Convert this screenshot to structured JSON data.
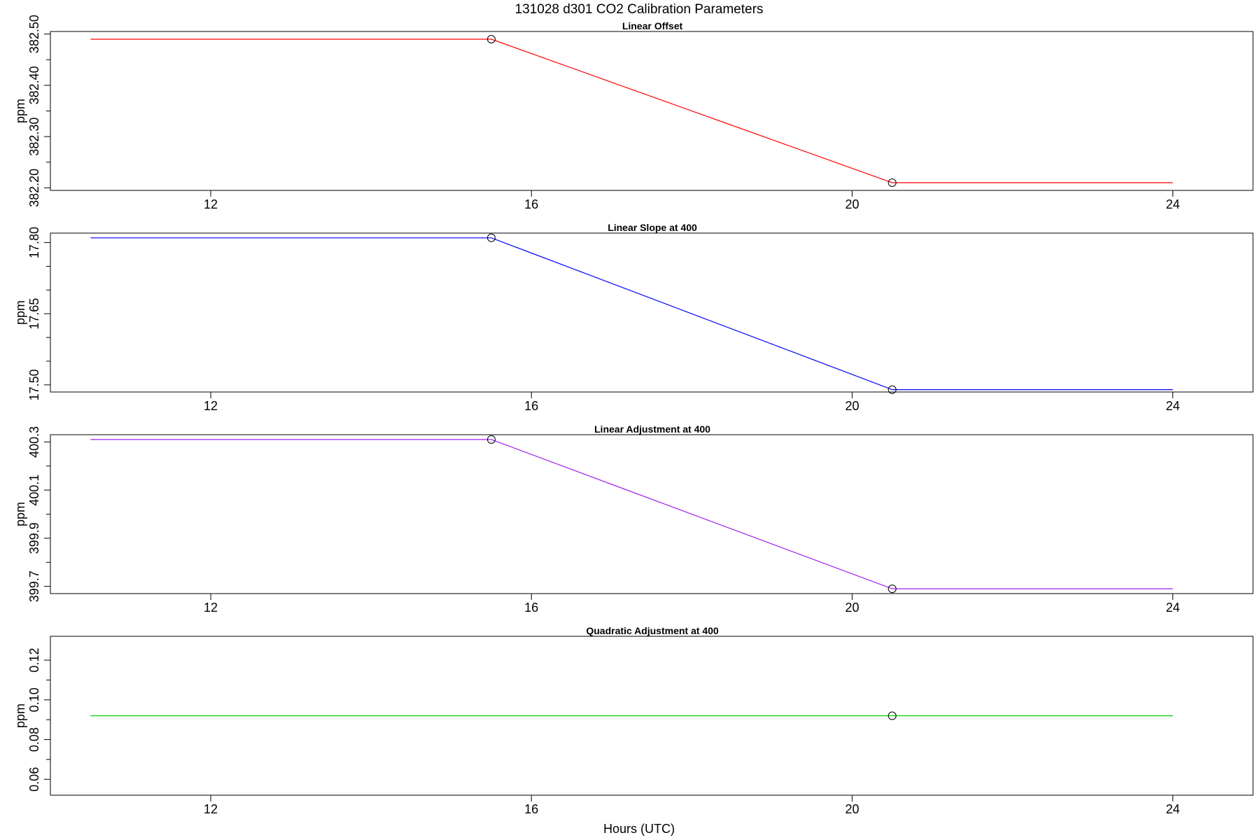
{
  "figure": {
    "title": "131028   d301   CO2 Calibration Parameters",
    "xlabel": "Hours (UTC)"
  },
  "chart_data": [
    {
      "type": "line",
      "title": "Linear Offset",
      "xlabel": "",
      "ylabel": "ppm",
      "xlim": [
        10,
        25
      ],
      "ylim": [
        382.195,
        382.505
      ],
      "x_ticks": [
        12,
        16,
        20,
        24
      ],
      "x_tick_labels": [
        "12",
        "16",
        "20",
        "24"
      ],
      "y_ticks": [
        382.2,
        382.3,
        382.4,
        382.5
      ],
      "y_tick_labels": [
        "382.20",
        "382.30",
        "382.40",
        "382.50"
      ],
      "y_minor_ticks": [
        382.25,
        382.35,
        382.45
      ],
      "color": "#ff0000",
      "x": [
        10.5,
        15.5,
        20.5,
        24.0
      ],
      "values": [
        382.49,
        382.49,
        382.21,
        382.21
      ],
      "markers": [
        {
          "x": 15.5,
          "y": 382.49
        },
        {
          "x": 20.5,
          "y": 382.21
        }
      ]
    },
    {
      "type": "line",
      "title": "Linear Slope at 400",
      "xlabel": "",
      "ylabel": "ppm",
      "xlim": [
        10,
        25
      ],
      "ylim": [
        17.485,
        17.82
      ],
      "x_ticks": [
        12,
        16,
        20,
        24
      ],
      "x_tick_labels": [
        "12",
        "16",
        "20",
        "24"
      ],
      "y_ticks": [
        17.5,
        17.65,
        17.8
      ],
      "y_tick_labels": [
        "17.50",
        "17.65",
        "17.80"
      ],
      "y_minor_ticks": [
        17.55,
        17.6,
        17.7,
        17.75
      ],
      "color": "#0000ff",
      "x": [
        10.5,
        15.5,
        20.5,
        24.0
      ],
      "values": [
        17.81,
        17.81,
        17.49,
        17.49
      ],
      "markers": [
        {
          "x": 15.5,
          "y": 17.81
        },
        {
          "x": 20.5,
          "y": 17.49
        }
      ]
    },
    {
      "type": "line",
      "title": "Linear Adjustment at 400",
      "xlabel": "",
      "ylabel": "ppm",
      "xlim": [
        10,
        25
      ],
      "ylim": [
        399.67,
        400.33
      ],
      "x_ticks": [
        12,
        16,
        20,
        24
      ],
      "x_tick_labels": [
        "12",
        "16",
        "20",
        "24"
      ],
      "y_ticks": [
        399.7,
        399.9,
        400.1,
        400.3
      ],
      "y_tick_labels": [
        "399.7",
        "399.9",
        "400.1",
        "400.3"
      ],
      "y_minor_ticks": [
        399.8,
        400.0,
        400.2
      ],
      "color": "#a020f0",
      "x": [
        10.5,
        15.5,
        20.5,
        24.0
      ],
      "values": [
        400.31,
        400.31,
        399.69,
        399.69
      ],
      "markers": [
        {
          "x": 15.5,
          "y": 400.31
        },
        {
          "x": 20.5,
          "y": 399.69
        }
      ]
    },
    {
      "type": "line",
      "title": "Quadratic Adjustment at 400",
      "xlabel": "Hours (UTC)",
      "ylabel": "ppm",
      "xlim": [
        10,
        25
      ],
      "ylim": [
        0.052,
        0.132
      ],
      "x_ticks": [
        12,
        16,
        20,
        24
      ],
      "x_tick_labels": [
        "12",
        "16",
        "20",
        "24"
      ],
      "y_ticks": [
        0.06,
        0.08,
        0.1,
        0.12
      ],
      "y_tick_labels": [
        "0.06",
        "0.08",
        "0.10",
        "0.12"
      ],
      "y_minor_ticks": [
        0.07,
        0.09,
        0.11
      ],
      "color": "#00cd00",
      "x": [
        10.5,
        24.0
      ],
      "values": [
        0.092,
        0.092
      ],
      "markers": [
        {
          "x": 20.5,
          "y": 0.092
        }
      ]
    }
  ]
}
